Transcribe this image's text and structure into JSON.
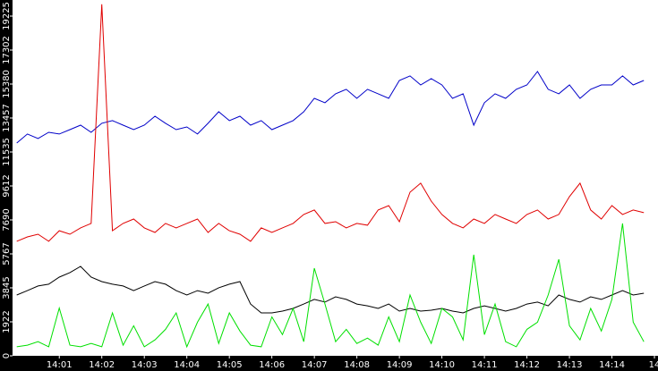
{
  "chart_data": {
    "type": "line",
    "x": [
      0,
      0.25,
      0.5,
      0.75,
      1,
      1.25,
      1.5,
      1.75,
      2,
      2.25,
      2.5,
      2.75,
      3,
      3.25,
      3.5,
      3.75,
      4,
      4.25,
      4.5,
      4.75,
      5,
      5.25,
      5.5,
      5.75,
      6,
      6.25,
      6.5,
      6.75,
      7,
      7.25,
      7.5,
      7.75,
      8,
      8.25,
      8.5,
      8.75,
      9,
      9.25,
      9.5,
      9.75,
      10,
      10.25,
      10.5,
      10.75,
      11,
      11.25,
      11.5,
      11.75,
      12,
      12.25,
      12.5,
      12.75,
      13,
      13.25,
      13.5,
      13.75,
      14,
      14.25,
      14.5,
      14.75
    ],
    "series": [
      {
        "color": "#0000c8",
        "values": [
          12040,
          12550,
          12300,
          12650,
          12550,
          12800,
          13050,
          12650,
          13160,
          13310,
          13050,
          12800,
          13050,
          13560,
          13160,
          12800,
          12950,
          12550,
          13160,
          13810,
          13310,
          13560,
          13050,
          13310,
          12800,
          13050,
          13310,
          13810,
          14570,
          14320,
          14830,
          15080,
          14570,
          15080,
          14830,
          14570,
          15580,
          15840,
          15330,
          15690,
          15330,
          14570,
          14830,
          13050,
          14320,
          14830,
          14570,
          15080,
          15330,
          16090,
          15080,
          14830,
          15330,
          14570,
          15080,
          15330,
          15330,
          15840,
          15330,
          15580
        ]
      },
      {
        "color": "#e00000",
        "values": [
          6480,
          6730,
          6880,
          6480,
          7080,
          6880,
          7240,
          7490,
          19890,
          7080,
          7490,
          7740,
          7240,
          6980,
          7490,
          7240,
          7490,
          7740,
          6980,
          7490,
          7080,
          6880,
          6480,
          7240,
          6980,
          7240,
          7490,
          8000,
          8250,
          7490,
          7590,
          7240,
          7490,
          7390,
          8250,
          8500,
          7590,
          9260,
          9770,
          8750,
          8000,
          7490,
          7240,
          7740,
          7490,
          8000,
          7740,
          7490,
          8000,
          8250,
          7740,
          8000,
          9010,
          9770,
          8250,
          7740,
          8500,
          8000,
          8250,
          8100
        ]
      },
      {
        "color": "#000000",
        "values": [
          3440,
          3690,
          3950,
          4050,
          4450,
          4710,
          5060,
          4450,
          4200,
          4050,
          3950,
          3690,
          3950,
          4200,
          4050,
          3690,
          3440,
          3690,
          3540,
          3850,
          4050,
          4200,
          2930,
          2430,
          2430,
          2530,
          2680,
          2930,
          3190,
          3040,
          3340,
          3190,
          2930,
          2830,
          2680,
          2930,
          2530,
          2680,
          2530,
          2580,
          2680,
          2530,
          2430,
          2680,
          2830,
          2680,
          2530,
          2680,
          2930,
          3040,
          2830,
          3440,
          3190,
          3040,
          3340,
          3190,
          3440,
          3690,
          3440,
          3540
        ]
      },
      {
        "color": "#00e000",
        "values": [
          510,
          600,
          800,
          510,
          2700,
          600,
          510,
          700,
          510,
          2430,
          600,
          1700,
          510,
          900,
          1500,
          2430,
          510,
          1900,
          2930,
          700,
          2430,
          1400,
          600,
          510,
          2200,
          1200,
          2680,
          800,
          4960,
          2930,
          800,
          1500,
          700,
          1000,
          600,
          2200,
          800,
          3440,
          1900,
          700,
          2680,
          2200,
          900,
          5720,
          1200,
          2930,
          800,
          510,
          1500,
          1900,
          3440,
          5460,
          1700,
          900,
          2680,
          1400,
          3190,
          7490,
          1900,
          800
        ]
      }
    ],
    "xlim": [
      -0.1,
      14.81
    ],
    "xticks": [
      {
        "value": 1,
        "label": "14:01"
      },
      {
        "value": 2,
        "label": "14:02"
      },
      {
        "value": 3,
        "label": "14:03"
      },
      {
        "value": 4,
        "label": "14:04"
      },
      {
        "value": 5,
        "label": "14:05"
      },
      {
        "value": 6,
        "label": "14:06"
      },
      {
        "value": 7,
        "label": "14:07"
      },
      {
        "value": 8,
        "label": "14:08"
      },
      {
        "value": 9,
        "label": "14:09"
      },
      {
        "value": 10,
        "label": "14:10"
      },
      {
        "value": 11,
        "label": "14:11"
      },
      {
        "value": 12,
        "label": "14:12"
      },
      {
        "value": 13,
        "label": "14:13"
      },
      {
        "value": 14,
        "label": "14:14"
      },
      {
        "value": 15,
        "label": "14"
      }
    ],
    "ylim": [
      0,
      20135
    ],
    "yticks": [
      0,
      1922,
      3845,
      5767,
      7690,
      9612,
      11535,
      13457,
      15380,
      17302,
      19225
    ]
  }
}
